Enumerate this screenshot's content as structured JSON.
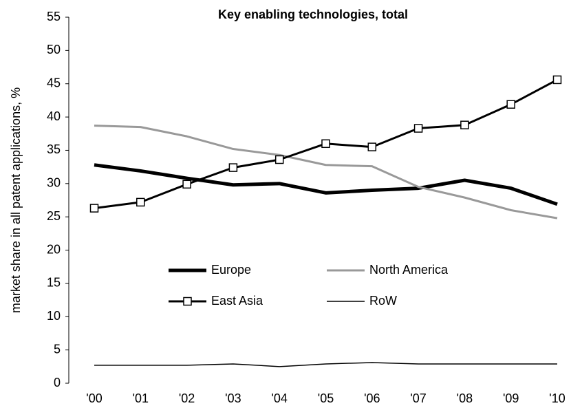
{
  "chart_data": {
    "type": "line",
    "title": "Key enabling technologies, total",
    "ylabel": "market share in all patent applications, %",
    "categories": [
      "'00",
      "'01",
      "'02",
      "'03",
      "'04",
      "'05",
      "'06",
      "'07",
      "'08",
      "'09",
      "'10"
    ],
    "series": [
      {
        "name": "Europe",
        "color": "#000000",
        "values": [
          32.8,
          31.9,
          30.8,
          29.8,
          30.0,
          28.6,
          29.0,
          29.3,
          30.5,
          29.3,
          26.9
        ]
      },
      {
        "name": "North America",
        "color": "#999999",
        "values": [
          38.7,
          38.5,
          37.1,
          35.2,
          34.3,
          32.8,
          32.6,
          29.5,
          27.9,
          26.0,
          24.8
        ]
      },
      {
        "name": "East Asia",
        "color": "#000000",
        "values": [
          26.3,
          27.2,
          29.9,
          32.4,
          33.6,
          36.0,
          35.5,
          38.3,
          38.8,
          41.9,
          45.6
        ]
      },
      {
        "name": "RoW",
        "color": "#000000",
        "values": [
          2.7,
          2.7,
          2.7,
          2.9,
          2.5,
          2.9,
          3.1,
          2.9,
          2.9,
          2.9,
          2.9
        ]
      }
    ],
    "ylim": [
      0,
      55
    ],
    "yticks": [
      0,
      5,
      10,
      15,
      20,
      25,
      30,
      35,
      40,
      45,
      50,
      55
    ]
  }
}
